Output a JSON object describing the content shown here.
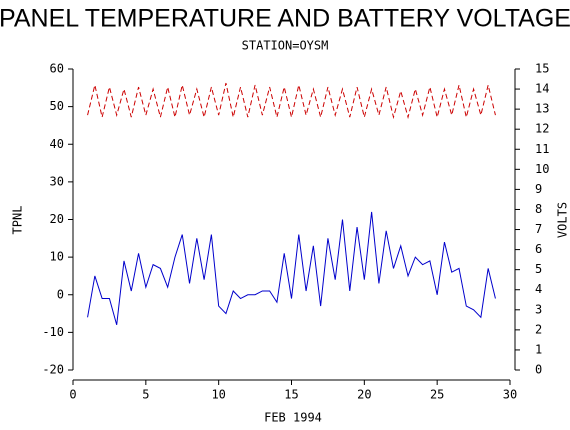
{
  "chart_data": {
    "type": "line",
    "title": "PANEL TEMPERATURE AND BATTERY VOLTAGE",
    "subtitle": "STATION=OYSM",
    "xlabel": "FEB 1994",
    "ylabel": "TPNL",
    "y2label": "VOLTS",
    "xlim": [
      0,
      30
    ],
    "xticks": [
      0,
      5,
      10,
      15,
      20,
      25,
      30
    ],
    "ylim": [
      -20,
      60
    ],
    "yticks": [
      -20,
      -10,
      0,
      10,
      20,
      30,
      40,
      50,
      60
    ],
    "y2lim": [
      0,
      15
    ],
    "y2ticks": [
      0,
      1,
      2,
      3,
      4,
      5,
      6,
      7,
      8,
      9,
      10,
      11,
      12,
      13,
      14,
      15
    ],
    "x": [
      1,
      1.5,
      2,
      2.5,
      3,
      3.5,
      4,
      4.5,
      5,
      5.5,
      6,
      6.5,
      7,
      7.5,
      8,
      8.5,
      9,
      9.5,
      10,
      10.5,
      11,
      11.5,
      12,
      12.5,
      13,
      13.5,
      14,
      14.5,
      15,
      15.5,
      16,
      16.5,
      17,
      17.5,
      18,
      18.5,
      19,
      19.5,
      20,
      20.5,
      21,
      21.5,
      22,
      22.5,
      23,
      23.5,
      24,
      24.5,
      25,
      25.5,
      26,
      26.5,
      27,
      27.5,
      28,
      28.5,
      29
    ],
    "series": [
      {
        "name": "TPNL",
        "color": "#0000cc",
        "dashed": false,
        "values": [
          -6,
          5,
          -1,
          -1,
          -8,
          9,
          1,
          11,
          2,
          8,
          7,
          2,
          10,
          16,
          3,
          15,
          4,
          16,
          -3,
          -5,
          1,
          -1,
          0,
          0,
          1,
          1,
          -2,
          11,
          -1,
          16,
          1,
          13,
          -3,
          15,
          4,
          20,
          1,
          18,
          4,
          22,
          3,
          17,
          7,
          13,
          5,
          10,
          8,
          9,
          0,
          14,
          6,
          7,
          -3,
          -4,
          -6,
          7,
          -1
        ]
      },
      {
        "name": "VOLTS",
        "color": "#cc0000",
        "dashed": true,
        "axis": "y2",
        "values": [
          12.7,
          14.2,
          12.6,
          14.1,
          12.7,
          14.0,
          12.6,
          14.1,
          12.7,
          14.0,
          12.6,
          14.1,
          12.6,
          14.2,
          12.7,
          14.0,
          12.6,
          14.1,
          12.7,
          14.3,
          12.6,
          14.1,
          12.6,
          14.2,
          12.7,
          14.1,
          12.6,
          14.1,
          12.6,
          14.2,
          12.7,
          14.0,
          12.6,
          14.1,
          12.7,
          14.0,
          12.6,
          14.1,
          12.6,
          14.0,
          12.7,
          14.1,
          12.6,
          13.9,
          12.6,
          14.0,
          12.7,
          14.1,
          12.6,
          14.0,
          12.7,
          14.2,
          12.6,
          14.0,
          12.7,
          14.2,
          12.7
        ]
      }
    ]
  }
}
